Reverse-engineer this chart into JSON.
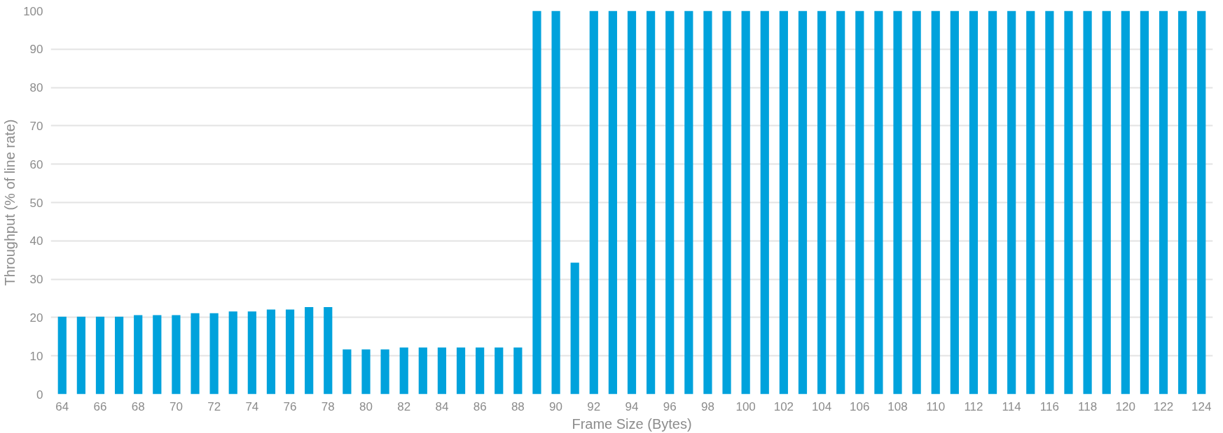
{
  "chart_data": {
    "type": "bar",
    "xlabel": "Frame Size (Bytes)",
    "ylabel": "Throughput (% of line rate)",
    "categories": [
      "64",
      null,
      "66",
      null,
      "68",
      null,
      "70",
      null,
      "72",
      null,
      "74",
      null,
      "76",
      null,
      "78",
      null,
      "80",
      null,
      "82",
      null,
      "84",
      null,
      "86",
      null,
      "88",
      null,
      "90",
      null,
      "92",
      null,
      "94",
      null,
      "96",
      null,
      "98",
      null,
      "100",
      null,
      "102",
      null,
      "104",
      null,
      "106",
      null,
      "108",
      null,
      "110",
      null,
      "112",
      null,
      "114",
      null,
      "116",
      null,
      "118",
      null,
      "120",
      null,
      "122",
      null,
      "124"
    ],
    "values": [
      20.2,
      20.2,
      20.2,
      20.2,
      20.6,
      20.6,
      20.6,
      21.1,
      21.1,
      21.6,
      21.6,
      22.1,
      22.1,
      22.7,
      22.7,
      11.7,
      11.7,
      11.7,
      12.2,
      12.2,
      12.2,
      12.2,
      12.2,
      12.2,
      12.2,
      100,
      100,
      34.3,
      100,
      100,
      100,
      100,
      100,
      100,
      100,
      100,
      100,
      100,
      100,
      100,
      100,
      100,
      100,
      100,
      100,
      100,
      100,
      100,
      100,
      100,
      100,
      100,
      100,
      100,
      100,
      100,
      100,
      100,
      100,
      100,
      100
    ],
    "color": "#00a2dc",
    "ylim": [
      0,
      100
    ],
    "yticks": [
      0,
      10,
      20,
      30,
      40,
      50,
      60,
      70,
      80,
      90,
      100
    ],
    "grid": "y"
  }
}
